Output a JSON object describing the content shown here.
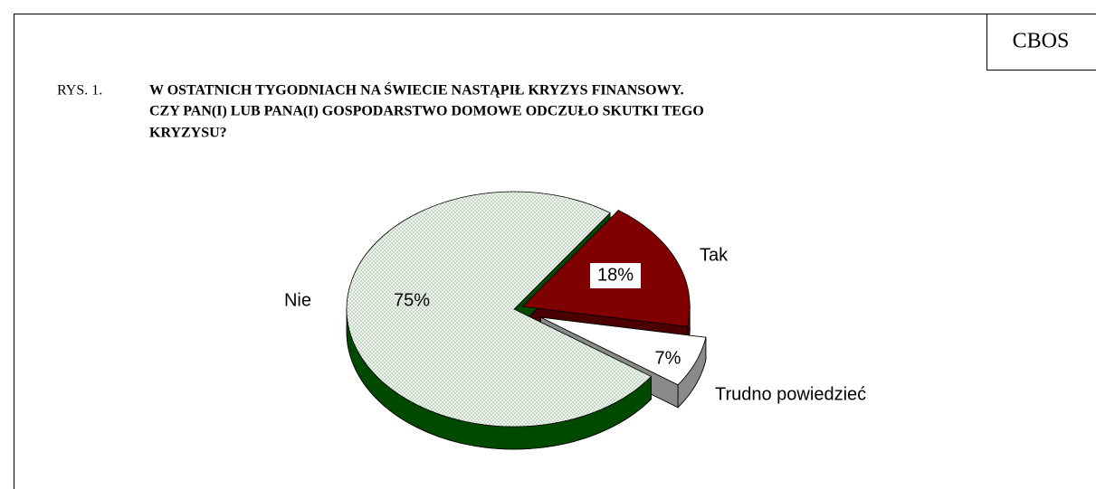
{
  "brand": "CBOS",
  "chart_data": {
    "type": "pie",
    "figure_label": "RYS. 1.",
    "title": [
      "W OSTATNICH TYGODNIACH NA ŚWIECIE NASTĄPIŁ KRYZYS FINANSOWY.",
      "CZY PAN(I) LUB PANA(I) GOSPODARSTWO DOMOWE ODCZUŁO SKUTKI TEGO",
      "KRYZYSU?"
    ],
    "categories": [
      "Tak",
      "Trudno powiedzieć",
      "Nie"
    ],
    "values": [
      18,
      7,
      75
    ],
    "value_labels": [
      "18%",
      "7%",
      "75%"
    ],
    "colors": [
      "#800000",
      "#ffffff",
      "#eef6ee"
    ]
  }
}
